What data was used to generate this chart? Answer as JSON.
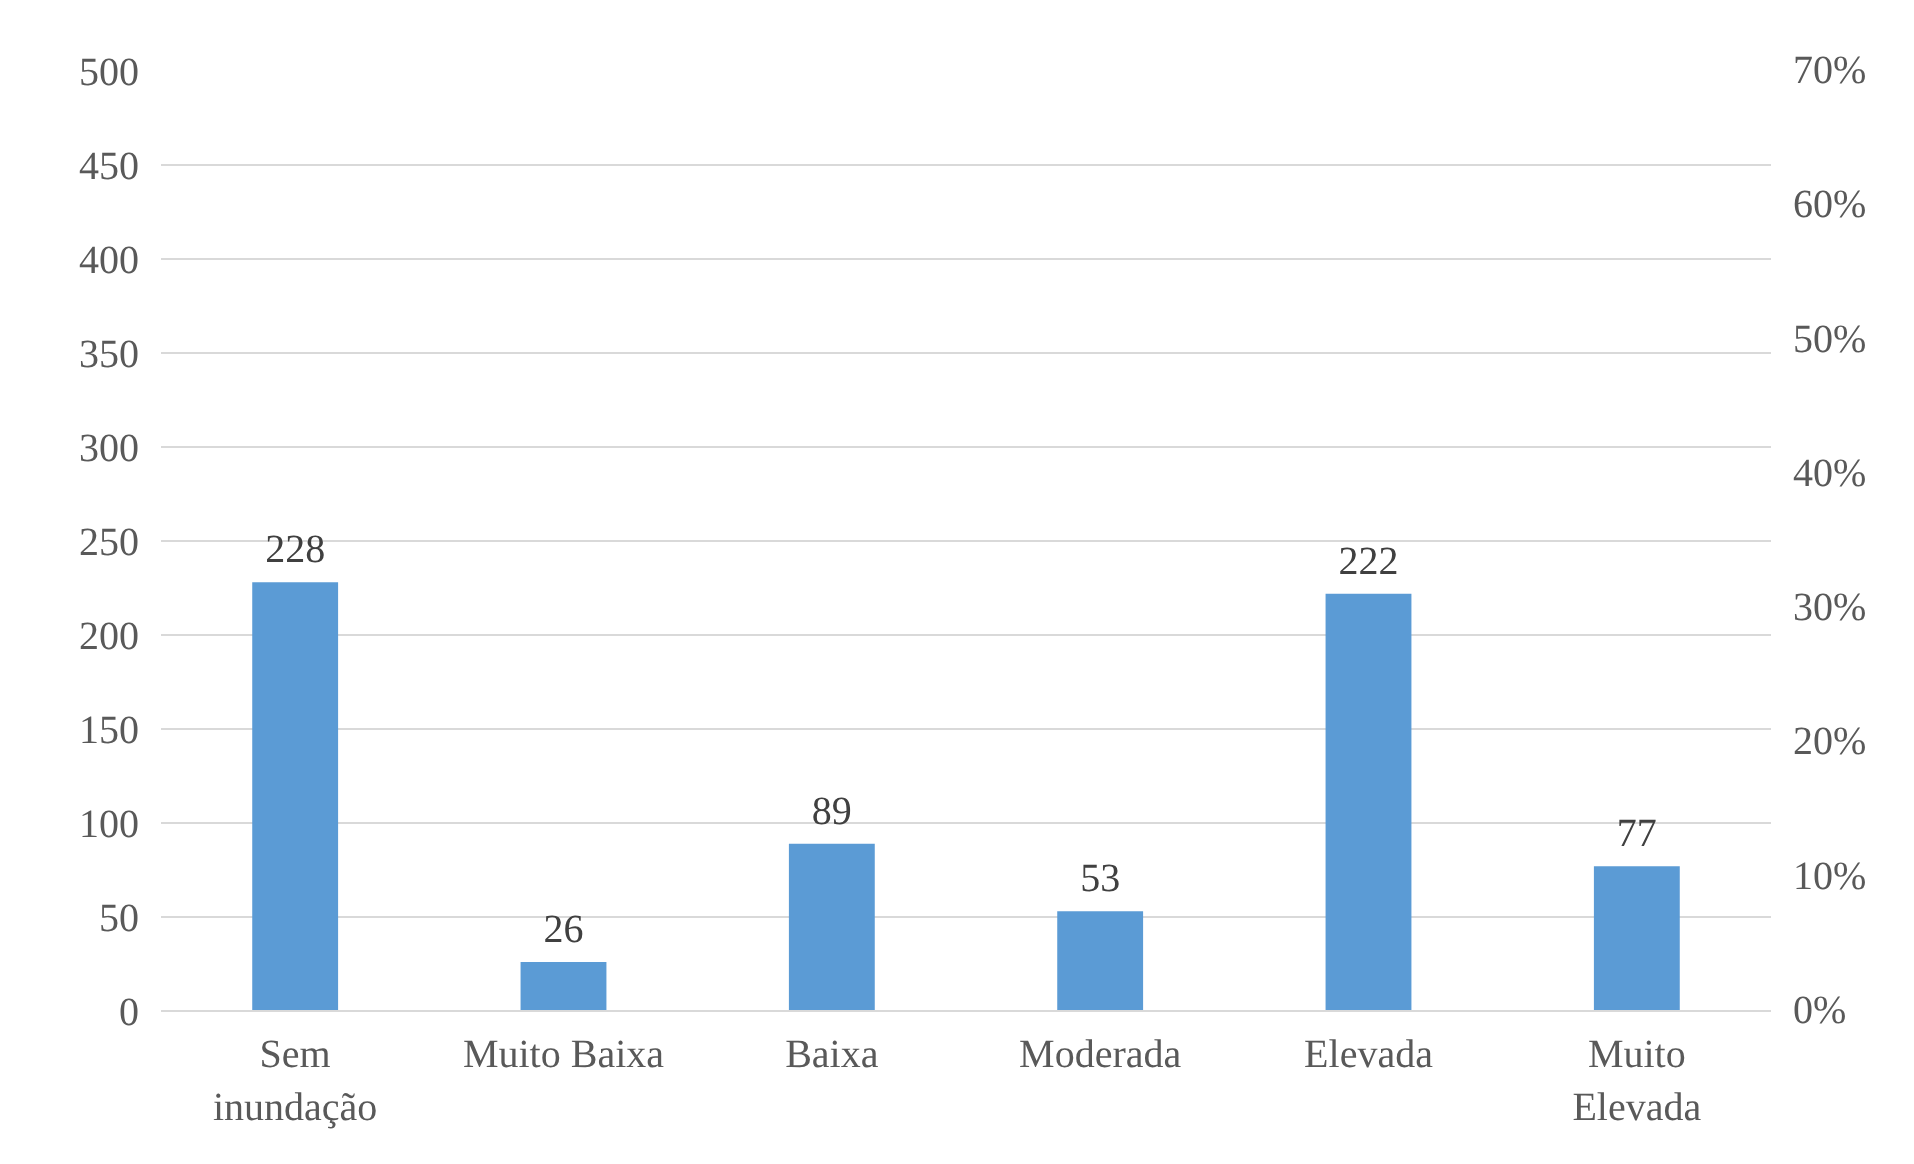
{
  "chart_data": {
    "type": "bar",
    "categories": [
      "Sem inundação",
      "Muito Baixa",
      "Baixa",
      "Moderada",
      "Elevada",
      "Muito Elevada"
    ],
    "values": [
      228,
      26,
      89,
      53,
      222,
      77
    ],
    "color": "#5b9bd5",
    "data_labels": true,
    "ylim": [
      0,
      500
    ],
    "yticks": [
      0,
      50,
      100,
      150,
      200,
      250,
      300,
      350,
      400,
      450,
      500
    ],
    "y2lim": [
      0,
      70
    ],
    "y2ticks": [
      {
        "value": 0,
        "label": "0%"
      },
      {
        "value": 10,
        "label": "10%"
      },
      {
        "value": 20,
        "label": "20%"
      },
      {
        "value": 30,
        "label": "30%"
      },
      {
        "value": 40,
        "label": "40%"
      },
      {
        "value": 50,
        "label": "50%"
      },
      {
        "value": 60,
        "label": "60%"
      },
      {
        "value": 70,
        "label": "70%"
      }
    ],
    "grid": "y"
  }
}
